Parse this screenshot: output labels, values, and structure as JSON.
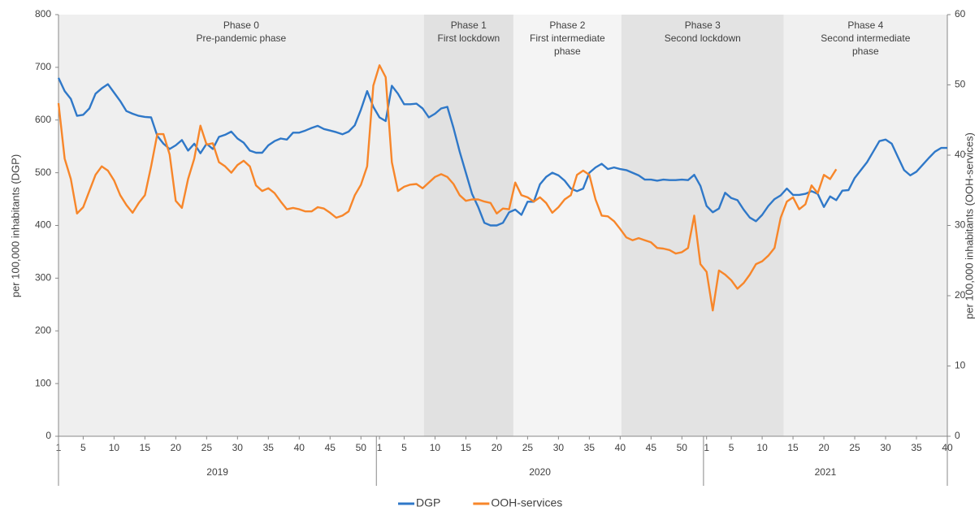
{
  "chart_data": {
    "type": "line",
    "y_label": "per 100,000 inhabitants (DGP)",
    "y2_label": "per 100,000 inhabitants (OOH-services)",
    "ylim": [
      0,
      800
    ],
    "yticks": [
      0,
      100,
      200,
      300,
      400,
      500,
      600,
      700,
      800
    ],
    "y2lim": [
      0,
      60
    ],
    "y2ticks": [
      0,
      10,
      20,
      30,
      40,
      50,
      60
    ],
    "categories": [
      "1",
      null,
      null,
      null,
      "5",
      null,
      null,
      null,
      null,
      "10",
      null,
      null,
      null,
      null,
      "15",
      null,
      null,
      null,
      null,
      "20",
      null,
      null,
      null,
      null,
      "25",
      null,
      null,
      null,
      null,
      "30",
      null,
      null,
      null,
      null,
      "35",
      null,
      null,
      null,
      null,
      "40",
      null,
      null,
      null,
      null,
      "45",
      null,
      null,
      null,
      null,
      "50",
      null,
      null,
      "1",
      null,
      null,
      null,
      "5",
      null,
      null,
      null,
      null,
      "10",
      null,
      null,
      null,
      null,
      "15",
      null,
      null,
      null,
      null,
      "20",
      null,
      null,
      null,
      null,
      "25",
      null,
      null,
      null,
      null,
      "30",
      null,
      null,
      null,
      null,
      "35",
      null,
      null,
      null,
      null,
      "40",
      null,
      null,
      null,
      null,
      "45",
      null,
      null,
      null,
      null,
      "50",
      null,
      null,
      null,
      "1",
      null,
      null,
      null,
      "5",
      null,
      null,
      null,
      null,
      "10",
      null,
      null,
      null,
      null,
      "15",
      null,
      null,
      null,
      null,
      "20",
      null,
      null,
      null,
      null,
      "25",
      null,
      null,
      null,
      null,
      "30",
      null,
      null,
      null,
      null,
      "35",
      null,
      null,
      null,
      null,
      "40"
    ],
    "groups": [
      {
        "label": "2019",
        "weeks": 52
      },
      {
        "label": "2020",
        "weeks": 53
      },
      {
        "label": "2021",
        "weeks": 40
      }
    ],
    "phases": [
      {
        "lines": [
          "Phase 0",
          "Pre-pandemic phase"
        ],
        "from": 0,
        "to": 59.2,
        "color": "#efefef"
      },
      {
        "lines": [
          "Phase 1",
          "First lockdown"
        ],
        "from": 59.2,
        "to": 73.7,
        "color": "#e1e1e1"
      },
      {
        "lines": [
          "Phase 2",
          "First intermediate",
          "phase"
        ],
        "from": 73.7,
        "to": 91.2,
        "color": "#f4f4f4"
      },
      {
        "lines": [
          "Phase 3",
          "Second lockdown"
        ],
        "from": 91.2,
        "to": 117.5,
        "color": "#e3e3e3"
      },
      {
        "lines": [
          "Phase 4",
          "Second intermediate",
          "phase"
        ],
        "from": 117.5,
        "to": 144,
        "color": "#f0f0f0"
      }
    ],
    "series": [
      {
        "name": "DGP",
        "color": "#2f78c8",
        "values": [
          680,
          655,
          640,
          608,
          610,
          622,
          650,
          660,
          668,
          652,
          636,
          617,
          612,
          608,
          606,
          605,
          570,
          555,
          545,
          552,
          562,
          542,
          555,
          537,
          555,
          545,
          568,
          572,
          578,
          565,
          557,
          542,
          538,
          538,
          552,
          560,
          565,
          563,
          576,
          576,
          580,
          585,
          589,
          583,
          580,
          577,
          573,
          578,
          590,
          620,
          655,
          625,
          605,
          598,
          665,
          650,
          630,
          630,
          631,
          622,
          605,
          612,
          622,
          625,
          585,
          540,
          500,
          460,
          435,
          405,
          400,
          400,
          405,
          425,
          430,
          420,
          445,
          445,
          478,
          492,
          500,
          495,
          485,
          470,
          465,
          470,
          500,
          510,
          517,
          507,
          510,
          507,
          505,
          500,
          495,
          487,
          487,
          485,
          487,
          486,
          486,
          487,
          486,
          496,
          475,
          437,
          425,
          432,
          462,
          452,
          448,
          430,
          415,
          408,
          420,
          437,
          450,
          457,
          470,
          458,
          458,
          460,
          465,
          460,
          435,
          455,
          448,
          466,
          467,
          490,
          505,
          520,
          540,
          560,
          563,
          555,
          530,
          505,
          495,
          502,
          515,
          528,
          540,
          547,
          547
        ]
      },
      {
        "name": "OOH-services",
        "color": "#f7862a",
        "axis": "y2",
        "values": [
          47.4,
          39.5,
          36.6,
          31.7,
          32.6,
          34.9,
          37.2,
          38.4,
          37.8,
          36.4,
          34.3,
          32.9,
          31.8,
          33.2,
          34.3,
          38.4,
          43,
          43,
          40.1,
          33.5,
          32.5,
          36.6,
          39.5,
          44.2,
          41.5,
          41.7,
          39,
          38.4,
          37.5,
          38.6,
          39.2,
          38.4,
          35.7,
          34.9,
          35.3,
          34.6,
          33.4,
          32.3,
          32.5,
          32.3,
          32,
          32,
          32.6,
          32.4,
          31.8,
          31.1,
          31.4,
          32,
          34.3,
          35.8,
          38.4,
          49.9,
          52.8,
          51.1,
          39,
          34.9,
          35.5,
          35.8,
          35.9,
          35.3,
          36.1,
          36.9,
          37.3,
          36.9,
          35.9,
          34.3,
          33.5,
          33.7,
          33.7,
          33.4,
          33.2,
          31.7,
          32.4,
          32.3,
          36.1,
          34.3,
          34,
          33.4,
          34,
          33.2,
          31.8,
          32.6,
          33.7,
          34.3,
          37.2,
          37.8,
          37.2,
          33.7,
          31.4,
          31.3,
          30.6,
          29.5,
          28.3,
          27.9,
          28.2,
          27.9,
          27.6,
          26.8,
          26.7,
          26.5,
          26,
          26.2,
          26.8,
          31.4,
          24.5,
          23.4,
          17.9,
          23.6,
          23,
          22.2,
          21,
          21.8,
          23,
          24.5,
          24.9,
          25.7,
          26.8,
          31.1,
          33.4,
          34,
          32.3,
          33,
          35.7,
          34.6,
          37.2,
          36.6,
          38,
          null,
          null,
          null,
          null,
          null,
          null,
          null,
          null,
          null,
          null,
          null,
          null,
          null,
          null,
          null,
          null,
          null,
          null
        ]
      }
    ]
  }
}
